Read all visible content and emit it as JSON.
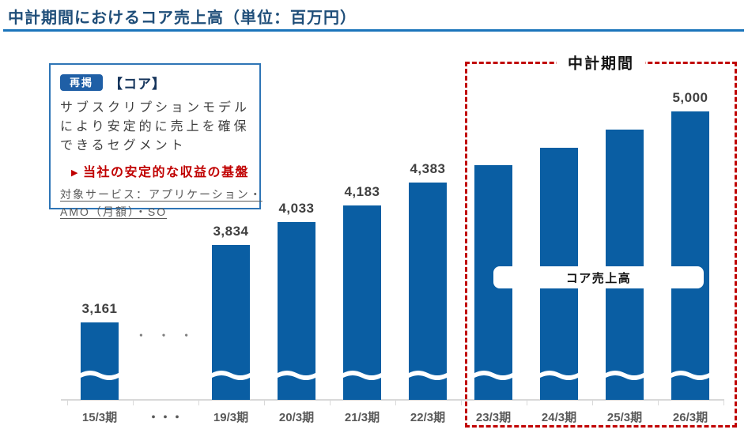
{
  "header": {
    "title": "中計期間におけるコア売上高（単位：百万円）",
    "title_color": "#1f4e79",
    "rule_color": "#1b75bb"
  },
  "info_box": {
    "badge": {
      "label": "再掲",
      "bg": "#1f5fa6",
      "text_color": "#ffffff"
    },
    "heading": "【コア】",
    "heading_color": "#17365d",
    "body_lines": [
      "サブスクリプションモデル",
      "により安定的に売上を確保",
      "できるセグメント"
    ],
    "body_color": "#404040",
    "highlight": {
      "arrow": "▶",
      "text": "当社の安定的な収益の基盤",
      "color": "#c00000"
    },
    "services_lines": [
      "対象サービス：アプリケーション・",
      "AMO（月額）・SO"
    ],
    "services_color": "#595959",
    "border_color": "#2e75b6"
  },
  "midterm_box": {
    "label": "中計期間",
    "series_pill": "コア売上高",
    "border_color": "#c00000"
  },
  "gap_dots": "・ ・ ・",
  "chart_data": {
    "type": "bar",
    "title": "中計期間におけるコア売上高",
    "unit": "百万円",
    "categories": [
      "15/3期",
      "・・・",
      "19/3期",
      "20/3期",
      "21/3期",
      "22/3期",
      "23/3期",
      "24/3期",
      "25/3期",
      "26/3期"
    ],
    "values": [
      3161,
      null,
      3834,
      4033,
      4183,
      4383,
      4530,
      4680,
      4840,
      5000
    ],
    "data_labels": [
      "3,161",
      "",
      "3,834",
      "4,033",
      "4,183",
      "4,383",
      "",
      "",
      "",
      "5,000"
    ],
    "unlabeled_values_estimated": true,
    "bar_color": "#0a5ea3",
    "label_color": "#404040",
    "axis_label_color": "#595959",
    "axis_break": true,
    "midterm_span": {
      "from": "23/3期",
      "to": "26/3期"
    },
    "ylim": [
      0,
      5300
    ],
    "grid": false,
    "legend": "none"
  }
}
